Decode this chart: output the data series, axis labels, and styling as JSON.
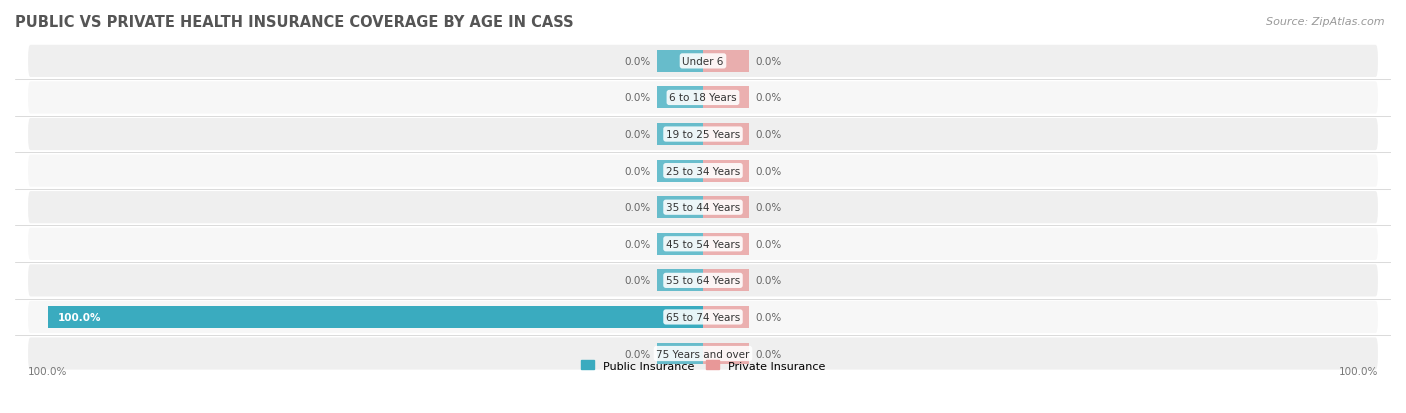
{
  "title": "PUBLIC VS PRIVATE HEALTH INSURANCE COVERAGE BY AGE IN CASS",
  "source": "Source: ZipAtlas.com",
  "categories": [
    "Under 6",
    "6 to 18 Years",
    "19 to 25 Years",
    "25 to 34 Years",
    "35 to 44 Years",
    "45 to 54 Years",
    "55 to 64 Years",
    "65 to 74 Years",
    "75 Years and over"
  ],
  "public_values": [
    0.0,
    0.0,
    0.0,
    0.0,
    0.0,
    0.0,
    0.0,
    100.0,
    0.0
  ],
  "private_values": [
    0.0,
    0.0,
    0.0,
    0.0,
    0.0,
    0.0,
    0.0,
    0.0,
    0.0
  ],
  "public_color": "#3AABBF",
  "private_color": "#E89898",
  "label_color_light": "#FFFFFF",
  "label_color_dark": "#666666",
  "title_color": "#555555",
  "source_color": "#999999",
  "axis_label_color": "#777777",
  "fig_bg": "#FFFFFF",
  "x_left_label": "100.0%",
  "x_right_label": "100.0%",
  "legend_public": "Public Insurance",
  "legend_private": "Private Insurance",
  "title_fontsize": 10.5,
  "source_fontsize": 8,
  "label_fontsize": 7.5,
  "category_fontsize": 7.5,
  "legend_fontsize": 8,
  "stub_size": 7,
  "row_colors": [
    "#EFEFEF",
    "#F7F7F7",
    "#EFEFEF",
    "#F7F7F7",
    "#EFEFEF",
    "#F7F7F7",
    "#EFEFEF",
    "#F7F7F7",
    "#EFEFEF"
  ]
}
